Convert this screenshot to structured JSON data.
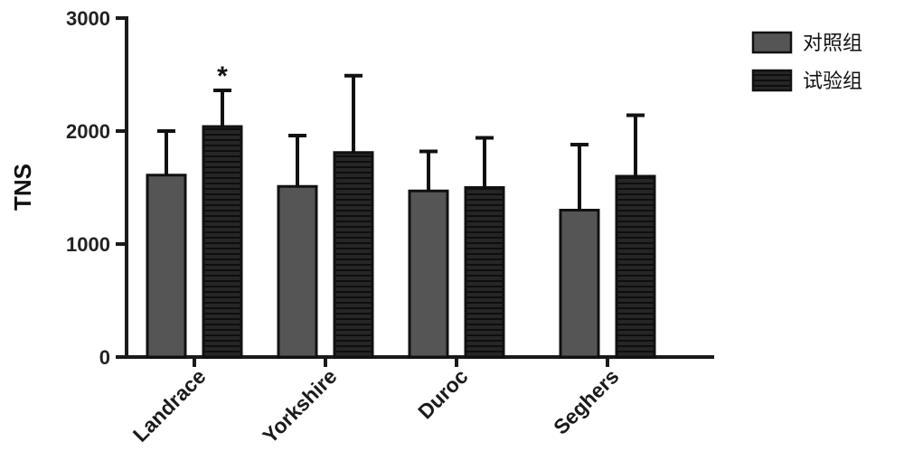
{
  "chart_data": {
    "type": "bar",
    "title": "",
    "xlabel": "",
    "ylabel": "TNS",
    "ylim": [
      0,
      3000
    ],
    "yticks": [
      0,
      1000,
      2000,
      3000
    ],
    "ytick_labels": [
      "0",
      "1000",
      "2000",
      "3000"
    ],
    "categories": [
      "Landrace",
      "Yorkshire",
      "Duroc",
      "Seghers"
    ],
    "series": [
      {
        "name": "对照组",
        "values": [
          1610,
          1510,
          1470,
          1300
        ],
        "error": [
          390,
          450,
          350,
          580
        ],
        "color": "#555555",
        "pattern": "solid"
      },
      {
        "name": "试验组",
        "values": [
          2040,
          1810,
          1500,
          1600
        ],
        "error": [
          320,
          680,
          440,
          540
        ],
        "color": "#1f1f1f",
        "pattern": "horizontal-lines"
      }
    ],
    "annotations": [
      {
        "text": "*",
        "category": "Landrace",
        "series": 1
      }
    ],
    "legend": {
      "position": "top-right"
    },
    "grid": false
  }
}
